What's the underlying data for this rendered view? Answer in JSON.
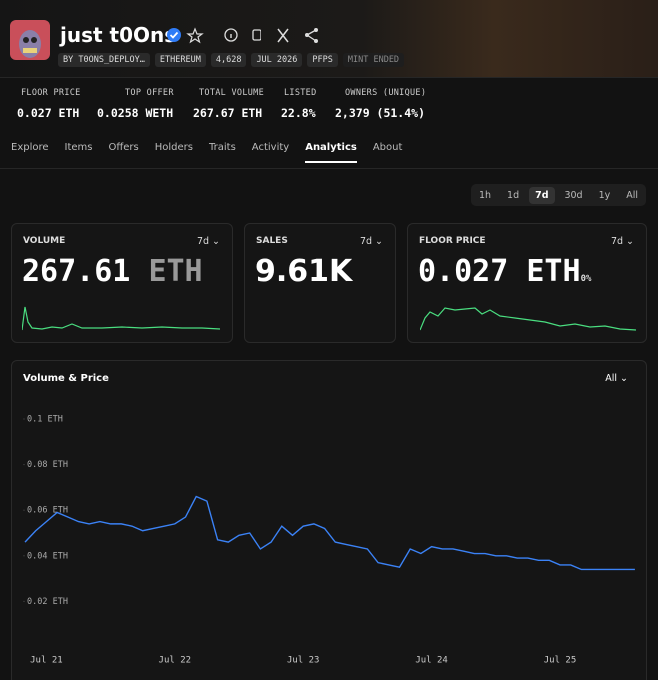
{
  "header": {
    "title": "just t0Ons",
    "creator": "BY T0ONS_DEPLOY…",
    "badges": [
      "ETHEREUM",
      "4,628",
      "JUL 2026",
      "PFPS",
      "MINT ENDED"
    ]
  },
  "stats": [
    {
      "label": "FLOOR PRICE",
      "value": "0.027 ETH"
    },
    {
      "label": "TOP OFFER",
      "value": "0.0258 WETH"
    },
    {
      "label": "TOTAL VOLUME",
      "value": "267.67 ETH"
    },
    {
      "label": "LISTED",
      "value": "22.8%"
    },
    {
      "label": "OWNERS (UNIQUE)",
      "value": "2,379 (51.4%)"
    }
  ],
  "tabs": [
    "Explore",
    "Items",
    "Offers",
    "Holders",
    "Traits",
    "Activity",
    "Analytics",
    "About"
  ],
  "time_filters": [
    "1h",
    "1d",
    "7d",
    "30d",
    "1y",
    "All"
  ],
  "cards": [
    {
      "label": "VOLUME",
      "period": "7d",
      "value": "267.61",
      "unit": "ETH"
    },
    {
      "label": "SALES",
      "period": "7d",
      "value": "9.61K"
    },
    {
      "label": "FLOOR PRICE",
      "period": "7d",
      "value": "0.027",
      "unit": "ETH",
      "change": "0%"
    }
  ],
  "chart_data": {
    "type": "line",
    "title": "Volume & Price",
    "period": "All",
    "color": "#3b82f6",
    "categories": [
      null,
      null,
      "Jul 21",
      null,
      null,
      null,
      null,
      null,
      null,
      null,
      null,
      null,
      null,
      null,
      "Jul 22",
      null,
      null,
      null,
      null,
      null,
      null,
      null,
      null,
      null,
      null,
      null,
      "Jul 23",
      null,
      null,
      null,
      null,
      null,
      null,
      null,
      null,
      null,
      null,
      null,
      "Jul 24",
      null,
      null,
      null,
      null,
      null,
      null,
      null,
      null,
      null,
      null,
      null,
      "Jul 25",
      null,
      null,
      null,
      null,
      null,
      null,
      null
    ],
    "values": [
      0.046,
      0.051,
      0.055,
      0.059,
      0.057,
      0.055,
      0.054,
      0.055,
      0.054,
      0.054,
      0.053,
      0.051,
      0.052,
      0.053,
      0.054,
      0.057,
      0.066,
      0.064,
      0.047,
      0.046,
      0.049,
      0.05,
      0.043,
      0.046,
      0.053,
      0.049,
      0.053,
      0.054,
      0.052,
      0.046,
      0.045,
      0.044,
      0.043,
      0.037,
      0.036,
      0.035,
      0.043,
      0.041,
      0.044,
      0.043,
      0.043,
      0.042,
      0.041,
      0.041,
      0.04,
      0.04,
      0.039,
      0.039,
      0.038,
      0.038,
      0.036,
      0.036,
      0.034,
      0.034,
      0.034,
      0.034,
      0.034,
      0.034
    ],
    "ylim": [
      0,
      0.1
    ],
    "yticks": [
      {
        "value": 0.02,
        "label": "0.02 ETH"
      },
      {
        "value": 0.04,
        "label": "0.04 ETH"
      },
      {
        "value": 0.06,
        "label": "0.06 ETH"
      },
      {
        "value": 0.08,
        "label": "0.08 ETH"
      },
      {
        "value": 0.1,
        "label": "0.1 ETH"
      }
    ]
  }
}
